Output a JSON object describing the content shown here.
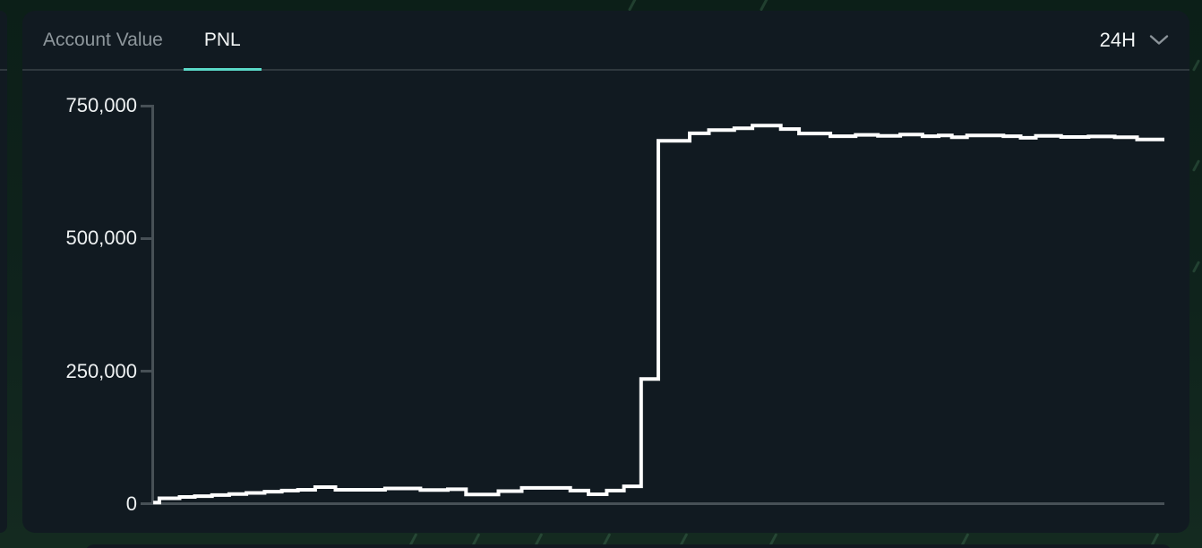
{
  "card": {
    "tabs": [
      {
        "label": "Account Value",
        "active": false
      },
      {
        "label": "PNL",
        "active": true
      }
    ],
    "time_range": {
      "selected": "24H",
      "icon": "chevron-down-icon"
    }
  },
  "colors": {
    "accent_teal": "#5bd9c8",
    "chart_line": "#ffffff",
    "panel_bg": "#111a21",
    "page_bg": "#0f231c",
    "axis_gray": "#475056",
    "muted_text": "#8e979c",
    "tab_border": "#2f383e"
  },
  "chart_data": {
    "type": "line",
    "line_style": "step-after",
    "title": "PNL",
    "time_window": "24H",
    "xlabel": "",
    "ylabel": "",
    "ylim": [
      0,
      750000
    ],
    "yticks": [
      0,
      250000,
      500000,
      750000
    ],
    "ytick_labels": [
      "0",
      "250,000",
      "500,000",
      "750,000"
    ],
    "grid": false,
    "legend_position": "none",
    "x_axis_labels": "none",
    "series": [
      {
        "name": "PNL",
        "color": "#ffffff",
        "points": [
          [
            0.001,
            3000
          ],
          [
            0.007,
            11000
          ],
          [
            0.027,
            13500
          ],
          [
            0.042,
            15000
          ],
          [
            0.059,
            17000
          ],
          [
            0.076,
            19000
          ],
          [
            0.093,
            21000
          ],
          [
            0.111,
            23500
          ],
          [
            0.128,
            25500
          ],
          [
            0.144,
            27000
          ],
          [
            0.161,
            32000
          ],
          [
            0.181,
            27000
          ],
          [
            0.23,
            29500
          ],
          [
            0.265,
            26500
          ],
          [
            0.292,
            28000
          ],
          [
            0.31,
            18000
          ],
          [
            0.342,
            24500
          ],
          [
            0.365,
            30500
          ],
          [
            0.413,
            25500
          ],
          [
            0.431,
            18500
          ],
          [
            0.449,
            25500
          ],
          [
            0.466,
            33500
          ],
          [
            0.483,
            235500
          ],
          [
            0.5,
            684000
          ],
          [
            0.531,
            698000
          ],
          [
            0.55,
            704000
          ],
          [
            0.575,
            707500
          ],
          [
            0.593,
            712500
          ],
          [
            0.621,
            706000
          ],
          [
            0.639,
            697500
          ],
          [
            0.67,
            692500
          ],
          [
            0.695,
            695000
          ],
          [
            0.717,
            693000
          ],
          [
            0.739,
            695500
          ],
          [
            0.761,
            692500
          ],
          [
            0.777,
            694000
          ],
          [
            0.79,
            690500
          ],
          [
            0.805,
            694000
          ],
          [
            0.841,
            692500
          ],
          [
            0.858,
            689500
          ],
          [
            0.873,
            693000
          ],
          [
            0.898,
            691000
          ],
          [
            0.925,
            692000
          ],
          [
            0.951,
            690500
          ],
          [
            0.973,
            686500
          ],
          [
            1.0,
            686500
          ]
        ]
      }
    ]
  }
}
